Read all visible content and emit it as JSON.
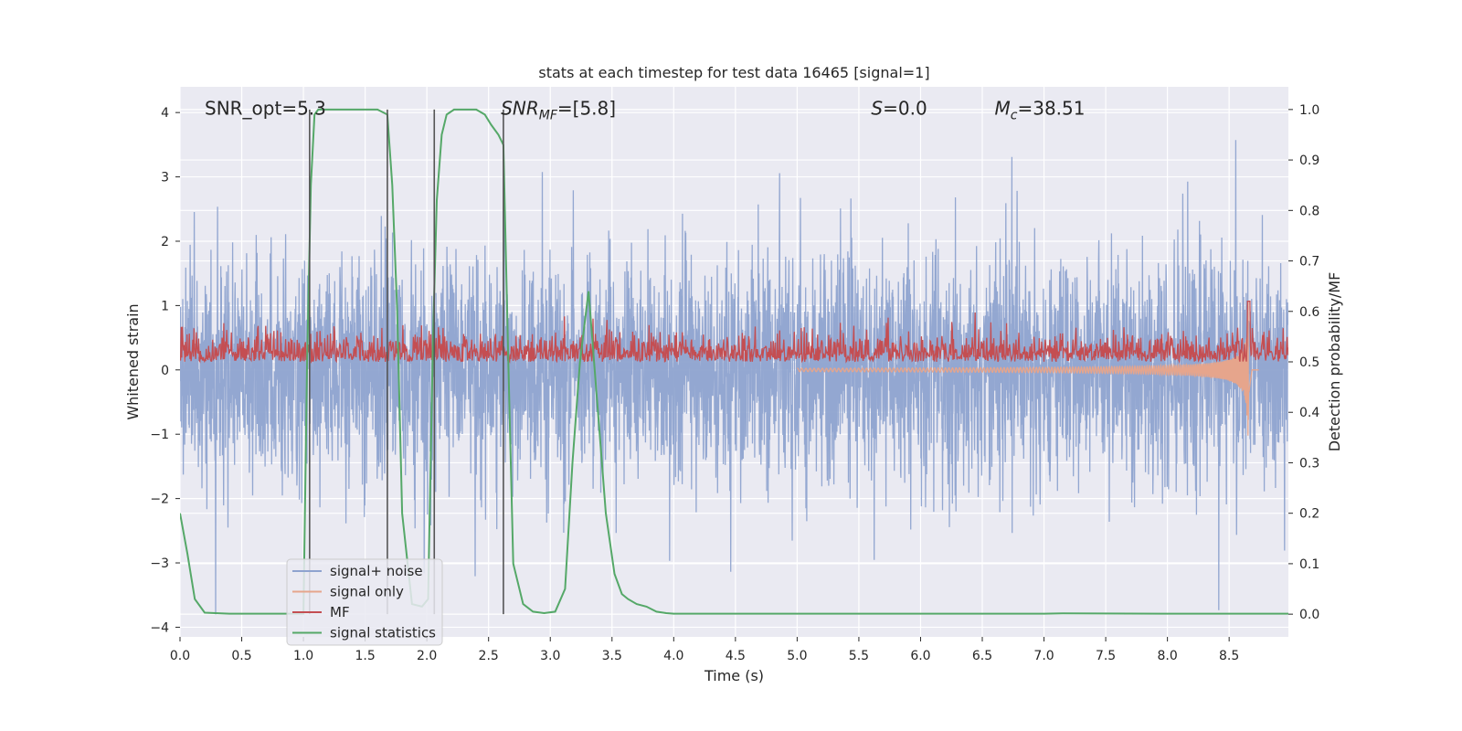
{
  "chart_data": {
    "type": "line",
    "title": "stats at each timestep for test data 16465 [signal=1]",
    "xlabel": "Time (s)",
    "ylabel_left": "Whitened strain",
    "ylabel_right": "Detection probability/MF",
    "xlim": [
      0,
      8.98
    ],
    "ylim_left": [
      -4.15,
      4.4
    ],
    "ylim_right": [
      -0.045,
      1.045
    ],
    "x_ticks": [
      "0.0",
      "0.5",
      "1.0",
      "1.5",
      "2.0",
      "2.5",
      "3.0",
      "3.5",
      "4.0",
      "4.5",
      "5.0",
      "5.5",
      "6.0",
      "6.5",
      "7.0",
      "7.5",
      "8.0",
      "8.5"
    ],
    "x_tick_values": [
      0,
      0.5,
      1,
      1.5,
      2,
      2.5,
      3,
      3.5,
      4,
      4.5,
      5,
      5.5,
      6,
      6.5,
      7,
      7.5,
      8,
      8.5
    ],
    "y_ticks_left": [
      "−4",
      "−3",
      "−2",
      "−1",
      "0",
      "1",
      "2",
      "3",
      "4"
    ],
    "y_tick_values_left": [
      -4,
      -3,
      -2,
      -1,
      0,
      1,
      2,
      3,
      4
    ],
    "y_ticks_right": [
      "0.0",
      "0.1",
      "0.2",
      "0.3",
      "0.4",
      "0.5",
      "0.6",
      "0.7",
      "0.8",
      "0.9",
      "1.0"
    ],
    "y_tick_values_right": [
      0,
      0.1,
      0.2,
      0.3,
      0.4,
      0.5,
      0.6,
      0.7,
      0.8,
      0.9,
      1.0
    ],
    "grid": true,
    "legend_placement": "lower-left",
    "annotations": [
      {
        "text": "SNR_opt=5.3",
        "x": 0.2,
        "y": 4.05
      },
      {
        "text": "SNR",
        "sub": "MF",
        "suffix": "=[5.8]",
        "italic_main": true,
        "x": 2.6,
        "y": 4.05
      },
      {
        "text": "S",
        "suffix": "=0.0",
        "italic_main": true,
        "x": 5.6,
        "y": 4.05
      },
      {
        "text": "M",
        "sub": "c",
        "suffix": "=38.51",
        "italic_main": true,
        "x": 6.6,
        "y": 4.05
      }
    ],
    "vertical_lines_x": [
      1.05,
      1.68,
      2.06,
      2.62
    ],
    "vertical_lines_color": "#555555",
    "series": [
      {
        "name": "signal+ noise",
        "color": "#8ea3cf",
        "axis": "left",
        "style": "noise",
        "sample_rate": 450,
        "sigma": 0.85,
        "spike_max_pos": 3.9,
        "spike_max_neg": -3.8
      },
      {
        "name": "signal only",
        "color": "#e6a58c",
        "axis": "left",
        "style": "chirp",
        "peak_time": 8.66,
        "peak_amp": 1.2,
        "peak_amp_neg": -1.3
      },
      {
        "name": "MF",
        "color": "#c44e52",
        "axis": "right",
        "style": "mf",
        "baseline": 0.5,
        "band": 0.04,
        "spike_x": 8.66,
        "spike_y": 0.62
      },
      {
        "name": "signal statistics",
        "color": "#55a868",
        "axis": "right",
        "x": [
          0.0,
          0.06,
          0.12,
          0.2,
          0.4,
          0.7,
          1.0,
          1.03,
          1.06,
          1.09,
          1.12,
          1.2,
          1.4,
          1.6,
          1.68,
          1.72,
          1.76,
          1.8,
          1.88,
          1.96,
          2.01,
          2.05,
          2.08,
          2.12,
          2.16,
          2.22,
          2.3,
          2.4,
          2.47,
          2.52,
          2.58,
          2.62,
          2.66,
          2.7,
          2.78,
          2.86,
          2.95,
          3.04,
          3.12,
          3.18,
          3.24,
          3.31,
          3.38,
          3.45,
          3.52,
          3.58,
          3.63,
          3.7,
          3.78,
          3.86,
          3.94,
          4.0,
          4.5,
          5.0,
          6.0,
          7.0,
          7.15,
          8.0,
          8.98
        ],
        "y": [
          0.2,
          0.12,
          0.03,
          0.003,
          0.001,
          0.001,
          0.001,
          0.5,
          0.85,
          0.99,
          1.0,
          1.0,
          1.0,
          1.0,
          0.99,
          0.85,
          0.6,
          0.2,
          0.02,
          0.015,
          0.03,
          0.55,
          0.82,
          0.95,
          0.99,
          1.0,
          1.0,
          1.0,
          0.99,
          0.97,
          0.95,
          0.93,
          0.5,
          0.1,
          0.02,
          0.005,
          0.002,
          0.005,
          0.05,
          0.3,
          0.5,
          0.64,
          0.42,
          0.2,
          0.08,
          0.04,
          0.03,
          0.02,
          0.015,
          0.005,
          0.002,
          0.001,
          0.001,
          0.001,
          0.001,
          0.001,
          0.0015,
          0.001,
          0.001
        ]
      }
    ]
  }
}
